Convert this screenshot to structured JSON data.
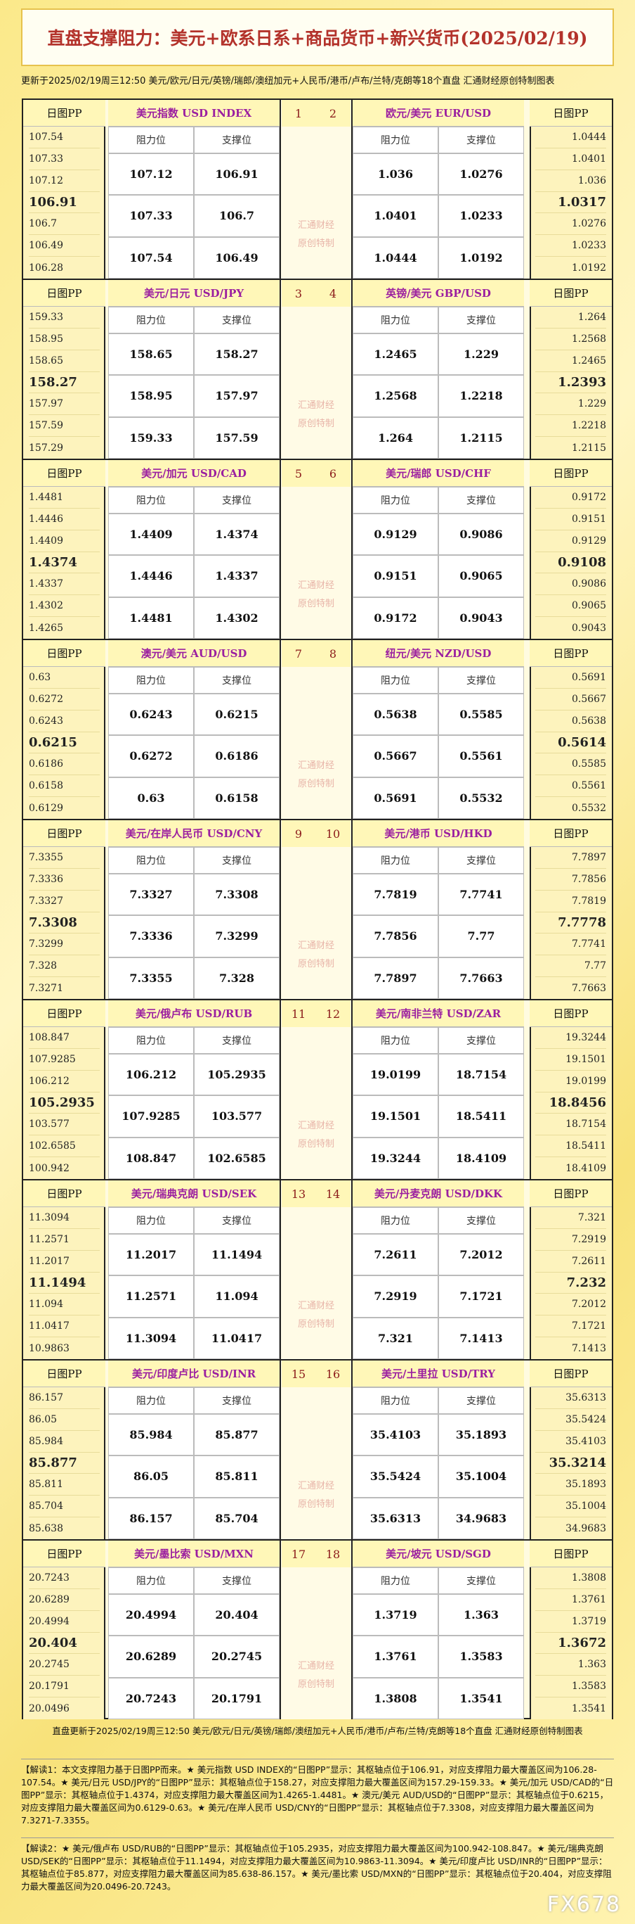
{
  "header": {
    "title": "直盘支撑阻力：美元+欧系日系+商品货币+新兴货币(2025/02/19)",
    "updated": "更新于2025/02/19周三12:50 美元/欧元/日元/英镑/瑞郎/澳纽加元+人民币/港币/卢布/兰特/克朗等18个直盘 汇通财经原创特制图表"
  },
  "labels": {
    "pp": "日图PP",
    "resistance": "阻力位",
    "support": "支撑位",
    "watermark": [
      "汇通财经",
      "原创特制"
    ]
  },
  "blocks": [
    {
      "numbers": [
        "1",
        "2"
      ],
      "pairs": [
        {
          "name": "美元指数 USD INDEX",
          "rows": [
            [
              "107.12",
              "106.91"
            ],
            [
              "107.33",
              "106.7"
            ],
            [
              "107.54",
              "106.49"
            ]
          ],
          "pp": [
            "107.54",
            "107.33",
            "107.12",
            "106.91",
            "106.7",
            "106.49",
            "106.28"
          ]
        },
        {
          "name": "欧元/美元 EUR/USD",
          "rows": [
            [
              "1.036",
              "1.0276"
            ],
            [
              "1.0401",
              "1.0233"
            ],
            [
              "1.0444",
              "1.0192"
            ]
          ],
          "pp": [
            "1.0444",
            "1.0401",
            "1.036",
            "1.0317",
            "1.0276",
            "1.0233",
            "1.0192"
          ]
        }
      ]
    },
    {
      "numbers": [
        "3",
        "4"
      ],
      "pairs": [
        {
          "name": "美元/日元 USD/JPY",
          "rows": [
            [
              "158.65",
              "158.27"
            ],
            [
              "158.95",
              "157.97"
            ],
            [
              "159.33",
              "157.59"
            ]
          ],
          "pp": [
            "159.33",
            "158.95",
            "158.65",
            "158.27",
            "157.97",
            "157.59",
            "157.29"
          ]
        },
        {
          "name": "英镑/美元 GBP/USD",
          "rows": [
            [
              "1.2465",
              "1.229"
            ],
            [
              "1.2568",
              "1.2218"
            ],
            [
              "1.264",
              "1.2115"
            ]
          ],
          "pp": [
            "1.264",
            "1.2568",
            "1.2465",
            "1.2393",
            "1.229",
            "1.2218",
            "1.2115"
          ]
        }
      ]
    },
    {
      "numbers": [
        "5",
        "6"
      ],
      "pairs": [
        {
          "name": "美元/加元 USD/CAD",
          "rows": [
            [
              "1.4409",
              "1.4374"
            ],
            [
              "1.4446",
              "1.4337"
            ],
            [
              "1.4481",
              "1.4302"
            ]
          ],
          "pp": [
            "1.4481",
            "1.4446",
            "1.4409",
            "1.4374",
            "1.4337",
            "1.4302",
            "1.4265"
          ]
        },
        {
          "name": "美元/瑞郎 USD/CHF",
          "rows": [
            [
              "0.9129",
              "0.9086"
            ],
            [
              "0.9151",
              "0.9065"
            ],
            [
              "0.9172",
              "0.9043"
            ]
          ],
          "pp": [
            "0.9172",
            "0.9151",
            "0.9129",
            "0.9108",
            "0.9086",
            "0.9065",
            "0.9043"
          ]
        }
      ]
    },
    {
      "numbers": [
        "7",
        "8"
      ],
      "pairs": [
        {
          "name": "澳元/美元 AUD/USD",
          "rows": [
            [
              "0.6243",
              "0.6215"
            ],
            [
              "0.6272",
              "0.6186"
            ],
            [
              "0.63",
              "0.6158"
            ]
          ],
          "pp": [
            "0.63",
            "0.6272",
            "0.6243",
            "0.6215",
            "0.6186",
            "0.6158",
            "0.6129"
          ]
        },
        {
          "name": "纽元/美元 NZD/USD",
          "rows": [
            [
              "0.5638",
              "0.5585"
            ],
            [
              "0.5667",
              "0.5561"
            ],
            [
              "0.5691",
              "0.5532"
            ]
          ],
          "pp": [
            "0.5691",
            "0.5667",
            "0.5638",
            "0.5614",
            "0.5585",
            "0.5561",
            "0.5532"
          ]
        }
      ]
    },
    {
      "numbers": [
        "9",
        "10"
      ],
      "pairs": [
        {
          "name": "美元/在岸人民币 USD/CNY",
          "rows": [
            [
              "7.3327",
              "7.3308"
            ],
            [
              "7.3336",
              "7.3299"
            ],
            [
              "7.3355",
              "7.328"
            ]
          ],
          "pp": [
            "7.3355",
            "7.3336",
            "7.3327",
            "7.3308",
            "7.3299",
            "7.328",
            "7.3271"
          ]
        },
        {
          "name": "美元/港币 USD/HKD",
          "rows": [
            [
              "7.7819",
              "7.7741"
            ],
            [
              "7.7856",
              "7.77"
            ],
            [
              "7.7897",
              "7.7663"
            ]
          ],
          "pp": [
            "7.7897",
            "7.7856",
            "7.7819",
            "7.7778",
            "7.7741",
            "7.77",
            "7.7663"
          ]
        }
      ]
    },
    {
      "numbers": [
        "11",
        "12"
      ],
      "pairs": [
        {
          "name": "美元/俄卢布 USD/RUB",
          "rows": [
            [
              "106.212",
              "105.2935"
            ],
            [
              "107.9285",
              "103.577"
            ],
            [
              "108.847",
              "102.6585"
            ]
          ],
          "pp": [
            "108.847",
            "107.9285",
            "106.212",
            "105.2935",
            "103.577",
            "102.6585",
            "100.942"
          ]
        },
        {
          "name": "美元/南非兰特 USD/ZAR",
          "rows": [
            [
              "19.0199",
              "18.7154"
            ],
            [
              "19.1501",
              "18.5411"
            ],
            [
              "19.3244",
              "18.4109"
            ]
          ],
          "pp": [
            "19.3244",
            "19.1501",
            "19.0199",
            "18.8456",
            "18.7154",
            "18.5411",
            "18.4109"
          ]
        }
      ]
    },
    {
      "numbers": [
        "13",
        "14"
      ],
      "pairs": [
        {
          "name": "美元/瑞典克朗 USD/SEK",
          "rows": [
            [
              "11.2017",
              "11.1494"
            ],
            [
              "11.2571",
              "11.094"
            ],
            [
              "11.3094",
              "11.0417"
            ]
          ],
          "pp": [
            "11.3094",
            "11.2571",
            "11.2017",
            "11.1494",
            "11.094",
            "11.0417",
            "10.9863"
          ]
        },
        {
          "name": "美元/丹麦克朗 USD/DKK",
          "rows": [
            [
              "7.2611",
              "7.2012"
            ],
            [
              "7.2919",
              "7.1721"
            ],
            [
              "7.321",
              "7.1413"
            ]
          ],
          "pp": [
            "7.321",
            "7.2919",
            "7.2611",
            "7.232",
            "7.2012",
            "7.1721",
            "7.1413"
          ]
        }
      ]
    },
    {
      "numbers": [
        "15",
        "16"
      ],
      "pairs": [
        {
          "name": "美元/印度卢比 USD/INR",
          "rows": [
            [
              "85.984",
              "85.877"
            ],
            [
              "86.05",
              "85.811"
            ],
            [
              "86.157",
              "85.704"
            ]
          ],
          "pp": [
            "86.157",
            "86.05",
            "85.984",
            "85.877",
            "85.811",
            "85.704",
            "85.638"
          ]
        },
        {
          "name": "美元/土里拉 USD/TRY",
          "rows": [
            [
              "35.4103",
              "35.1893"
            ],
            [
              "35.5424",
              "35.1004"
            ],
            [
              "35.6313",
              "34.9683"
            ]
          ],
          "pp": [
            "35.6313",
            "35.5424",
            "35.4103",
            "35.3214",
            "35.1893",
            "35.1004",
            "34.9683"
          ]
        }
      ]
    },
    {
      "numbers": [
        "17",
        "18"
      ],
      "pairs": [
        {
          "name": "美元/墨比索 USD/MXN",
          "rows": [
            [
              "20.4994",
              "20.404"
            ],
            [
              "20.6289",
              "20.2745"
            ],
            [
              "20.7243",
              "20.1791"
            ]
          ],
          "pp": [
            "20.7243",
            "20.6289",
            "20.4994",
            "20.404",
            "20.2745",
            "20.1791",
            "20.0496"
          ]
        },
        {
          "name": "美元/坡元 USD/SGD",
          "rows": [
            [
              "1.3719",
              "1.363"
            ],
            [
              "1.3761",
              "1.3583"
            ],
            [
              "1.3808",
              "1.3541"
            ]
          ],
          "pp": [
            "1.3808",
            "1.3761",
            "1.3719",
            "1.3672",
            "1.363",
            "1.3583",
            "1.3541"
          ]
        }
      ]
    }
  ],
  "footer": {
    "updated": "直盘更新于2025/02/19周三12:50 美元/欧元/日元/英镑/瑞郎/澳纽加元+人民币/港币/卢布/兰特/克朗等18个直盘 汇通财经原创特制图表",
    "notes": [
      "【解读1：本文支撑阻力基于日图PP而来。★ 美元指数 USD INDEX的“日图PP”显示：其枢轴点位于106.91，对应支撑阻力最大覆盖区间为106.28-107.54。★ 美元/日元 USD/JPY的“日图PP”显示：其枢轴点位于158.27，对应支撑阻力最大覆盖区间为157.29-159.33。★ 美元/加元 USD/CAD的“日图PP”显示：其枢轴点位于1.4374，对应支撑阻力最大覆盖区间为1.4265-1.4481。★ 澳元/美元 AUD/USD的“日图PP”显示：其枢轴点位于0.6215，对应支撑阻力最大覆盖区间为0.6129-0.63。★ 美元/在岸人民币 USD/CNY的“日图PP”显示：其枢轴点位于7.3308，对应支撑阻力最大覆盖区间为7.3271-7.3355。",
      "【解读2：★ 美元/俄卢布 USD/RUB的“日图PP”显示：其枢轴点位于105.2935，对应支撑阻力最大覆盖区间为100.942-108.847。★ 美元/瑞典克朗 USD/SEK的“日图PP”显示：其枢轴点位于11.1494，对应支撑阻力最大覆盖区间为10.9863-11.3094。★ 美元/印度卢比 USD/INR的“日图PP”显示：其枢轴点位于85.877，对应支撑阻力最大覆盖区间为85.638-86.157。★ 美元/墨比索 USD/MXN的“日图PP”显示：其枢轴点位于20.404，对应支撑阻力最大覆盖区间为20.0496-20.7243。"
    ],
    "logo": "FX678"
  }
}
